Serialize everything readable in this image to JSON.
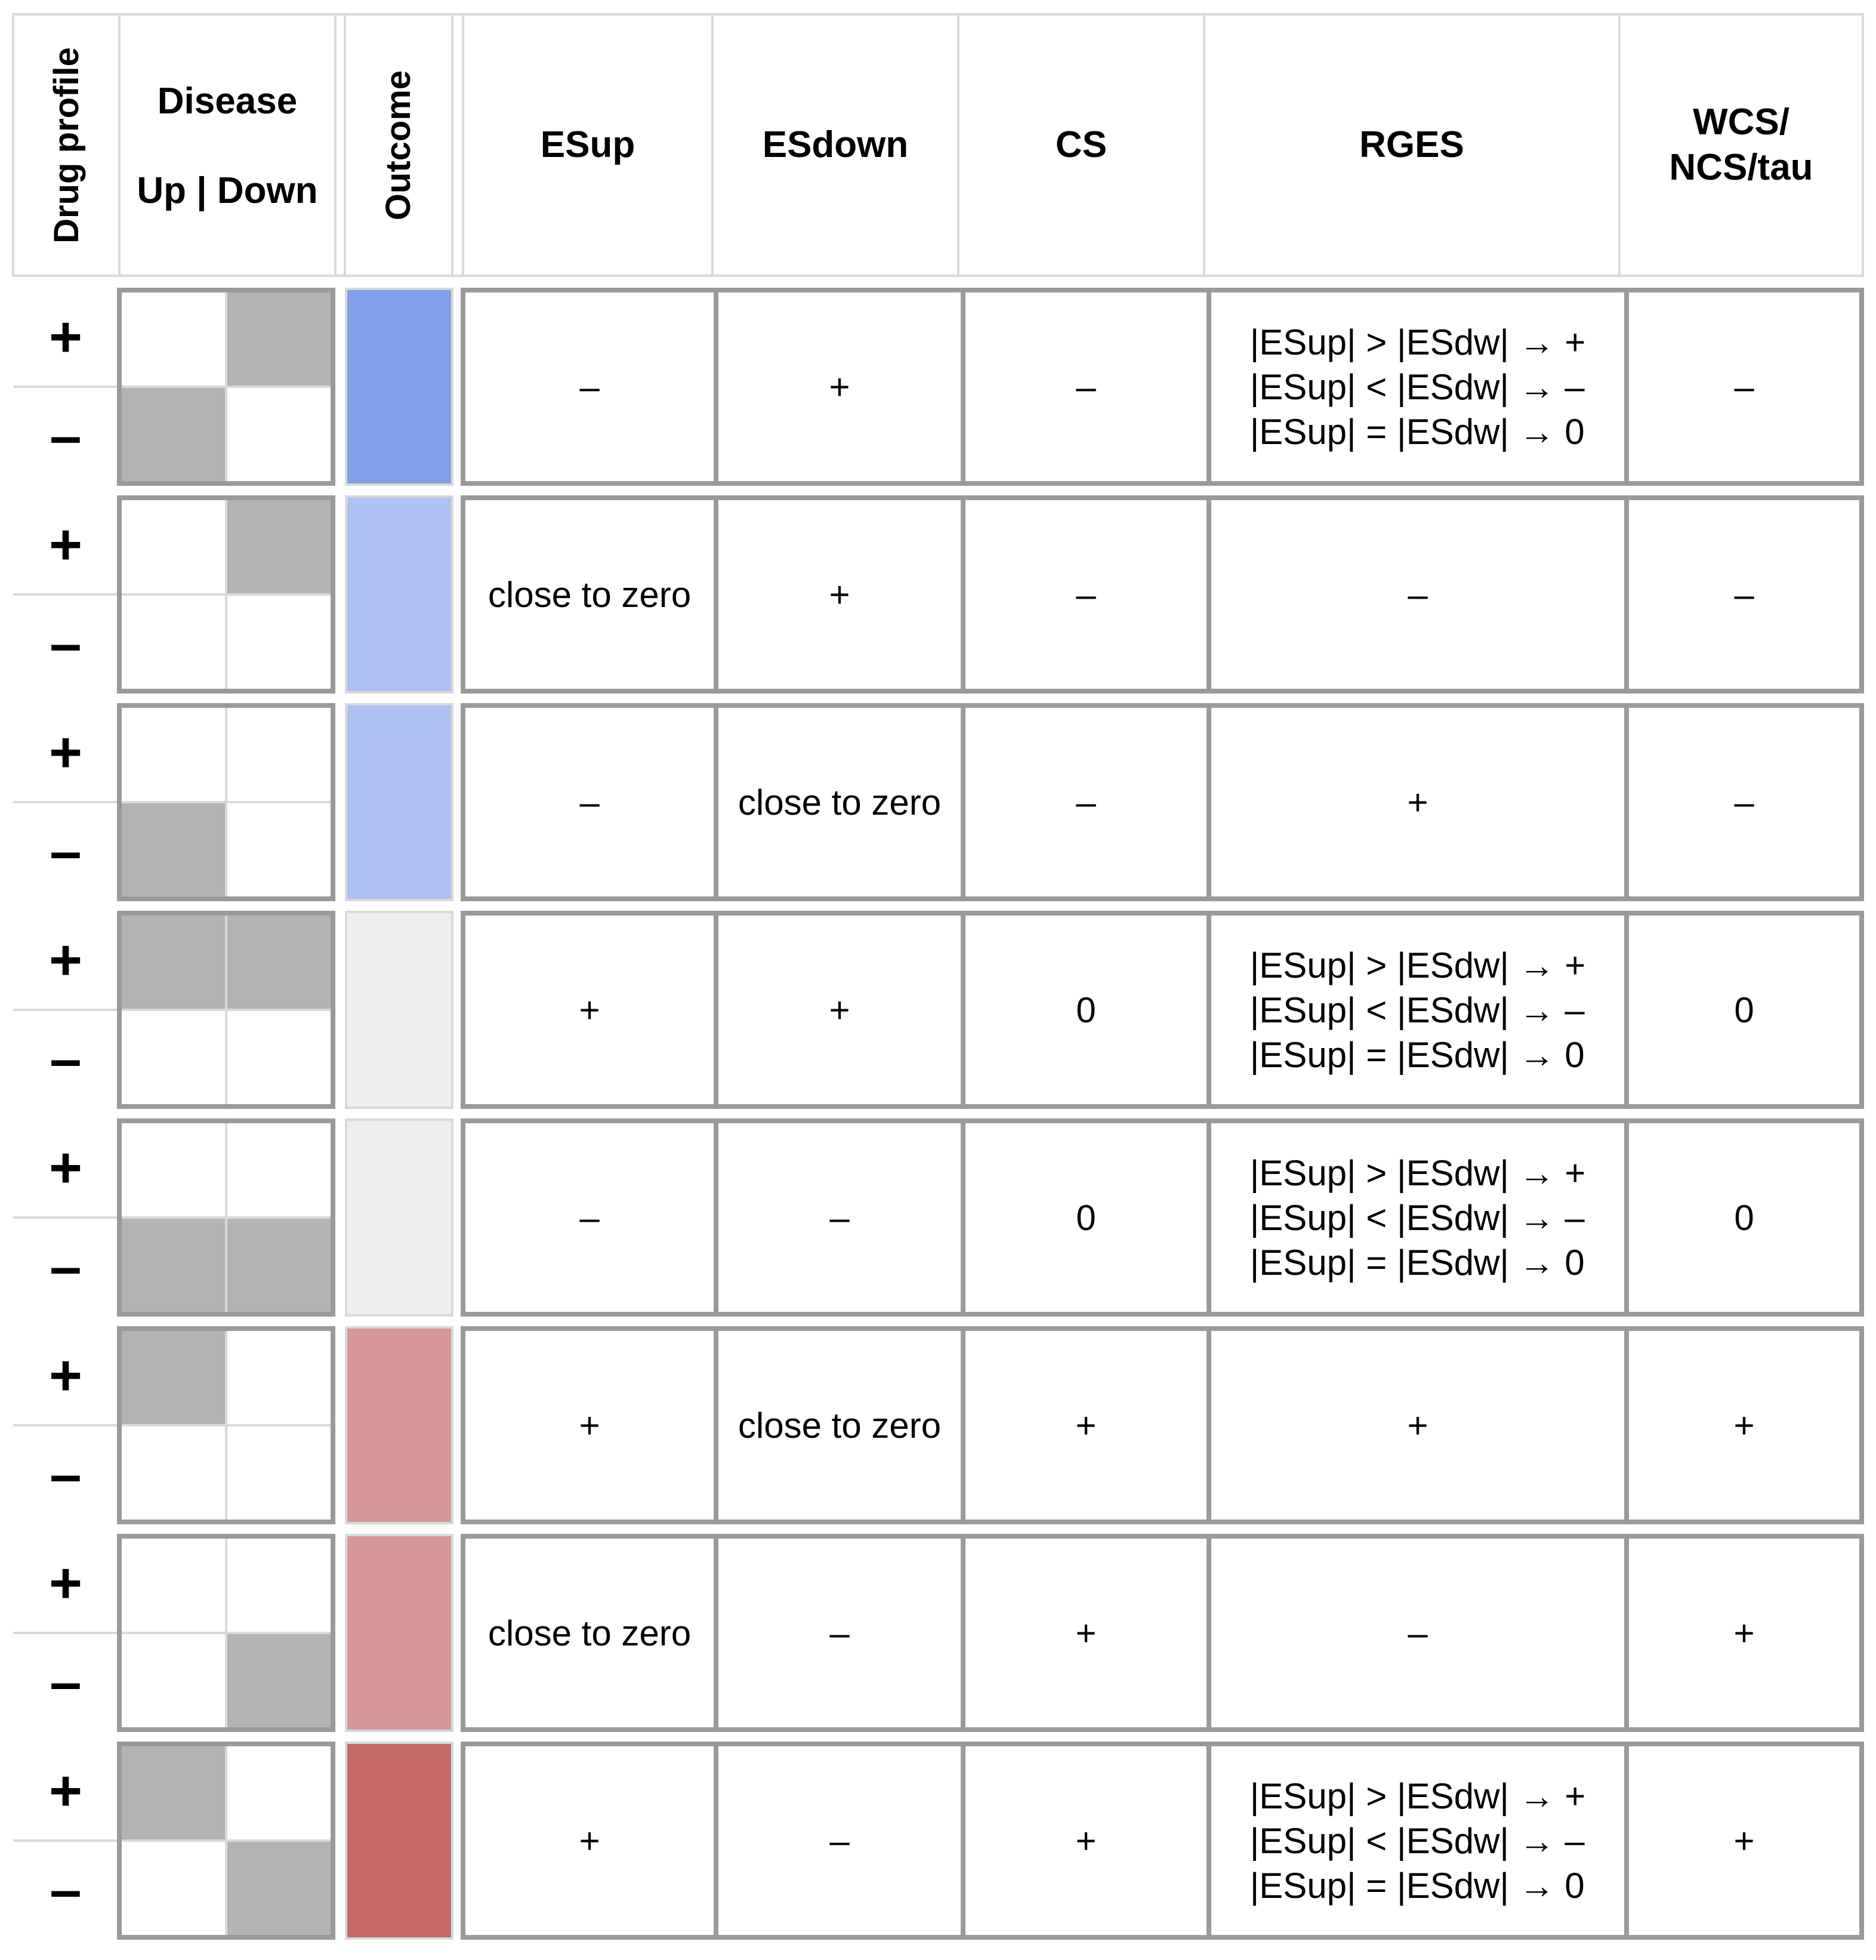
{
  "header": {
    "drug_profile": "Drug profile",
    "disease": "Disease",
    "up_down": "Up | Down",
    "outcome": "Outcome",
    "esup": "ESup",
    "esdown": "ESdown",
    "cs": "CS",
    "rges": "RGES",
    "wcs_line1": "WCS/",
    "wcs_line2": "NCS/tau"
  },
  "signs": {
    "plus": "+",
    "minus": "–"
  },
  "colors": {
    "outcome_dark_blue": "#7f9fe6",
    "outcome_light_blue": "#adc2f2",
    "outcome_neutral": "#eeeeee",
    "outcome_light_red": "#d79696",
    "outcome_dark_red": "#c66868",
    "disease_filled": "#b3b3b3"
  },
  "rows": [
    {
      "disease": {
        "up_plus": false,
        "down_plus": true,
        "up_minus": true,
        "down_minus": false
      },
      "outcome": "outcome_dark_blue",
      "esup": "–",
      "esdown": "+",
      "cs": "–",
      "rges": [
        "|ESup| > |ESdw| → +",
        "|ESup| < |ESdw| → –",
        "|ESup| = |ESdw| → 0"
      ],
      "wcs": "–"
    },
    {
      "disease": {
        "up_plus": false,
        "down_plus": true,
        "up_minus": false,
        "down_minus": false
      },
      "outcome": "outcome_light_blue",
      "esup": "close to zero",
      "esdown": "+",
      "cs": "–",
      "rges": [
        "–"
      ],
      "wcs": "–"
    },
    {
      "disease": {
        "up_plus": false,
        "down_plus": false,
        "up_minus": true,
        "down_minus": false
      },
      "outcome": "outcome_light_blue",
      "esup": "–",
      "esdown": "close to zero",
      "cs": "–",
      "rges": [
        "+"
      ],
      "wcs": "–"
    },
    {
      "disease": {
        "up_plus": true,
        "down_plus": true,
        "up_minus": false,
        "down_minus": false
      },
      "outcome": "outcome_neutral",
      "esup": "+",
      "esdown": "+",
      "cs": "0",
      "rges": [
        "|ESup| > |ESdw| → +",
        "|ESup| < |ESdw| → –",
        "|ESup| = |ESdw| → 0"
      ],
      "wcs": "0"
    },
    {
      "disease": {
        "up_plus": false,
        "down_plus": false,
        "up_minus": true,
        "down_minus": true
      },
      "outcome": "outcome_neutral",
      "esup": "–",
      "esdown": "–",
      "cs": "0",
      "rges": [
        "|ESup| > |ESdw| → +",
        "|ESup| < |ESdw| → –",
        "|ESup| = |ESdw| → 0"
      ],
      "wcs": "0"
    },
    {
      "disease": {
        "up_plus": true,
        "down_plus": false,
        "up_minus": false,
        "down_minus": false
      },
      "outcome": "outcome_light_red",
      "esup": "+",
      "esdown": "close to zero",
      "cs": "+",
      "rges": [
        "+"
      ],
      "wcs": "+"
    },
    {
      "disease": {
        "up_plus": false,
        "down_plus": false,
        "up_minus": false,
        "down_minus": true
      },
      "outcome": "outcome_light_red",
      "esup": "close to zero",
      "esdown": "–",
      "cs": "+",
      "rges": [
        "–"
      ],
      "wcs": "+"
    },
    {
      "disease": {
        "up_plus": true,
        "down_plus": false,
        "up_minus": false,
        "down_minus": true
      },
      "outcome": "outcome_dark_red",
      "esup": "+",
      "esdown": "–",
      "cs": "+",
      "rges": [
        "|ESup| > |ESdw| → +",
        "|ESup| < |ESdw| → –",
        "|ESup| = |ESdw| → 0"
      ],
      "wcs": "+"
    }
  ]
}
